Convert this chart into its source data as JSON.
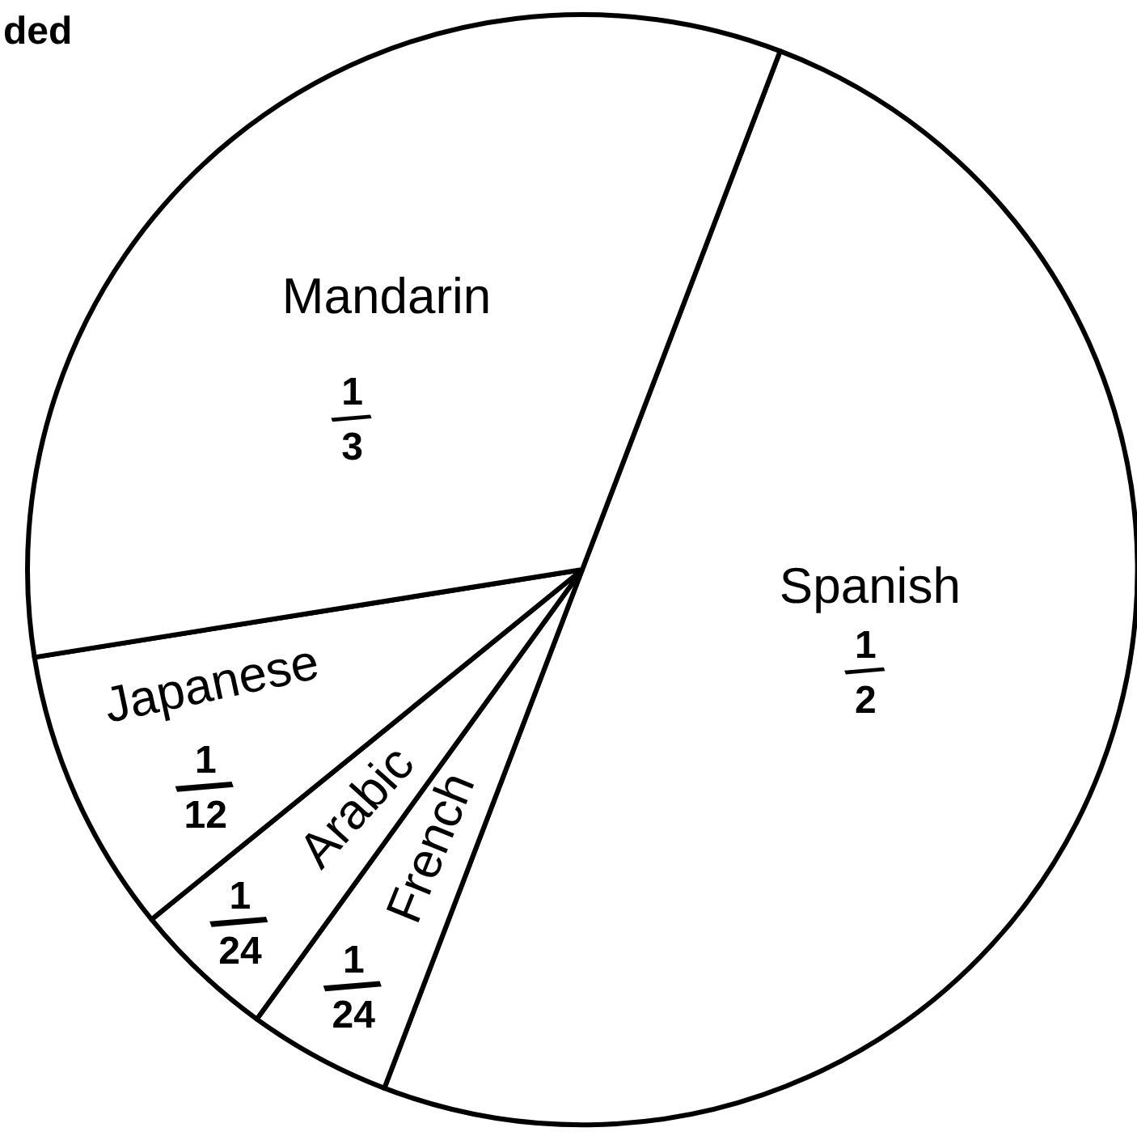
{
  "chart_data": {
    "type": "pie",
    "title": "ded",
    "categories": [
      "Spanish",
      "French",
      "Arabic",
      "Japanese",
      "Mandarin"
    ],
    "values": [
      0.5,
      0.0417,
      0.0417,
      0.0833,
      0.3333
    ],
    "colors": [
      "#ffffff",
      "#ffffff",
      "#ffffff",
      "#ffffff",
      "#ffffff"
    ],
    "value_labels": [
      "1/2",
      "1/24",
      "1/24",
      "1/12",
      "1/3"
    ]
  }
}
